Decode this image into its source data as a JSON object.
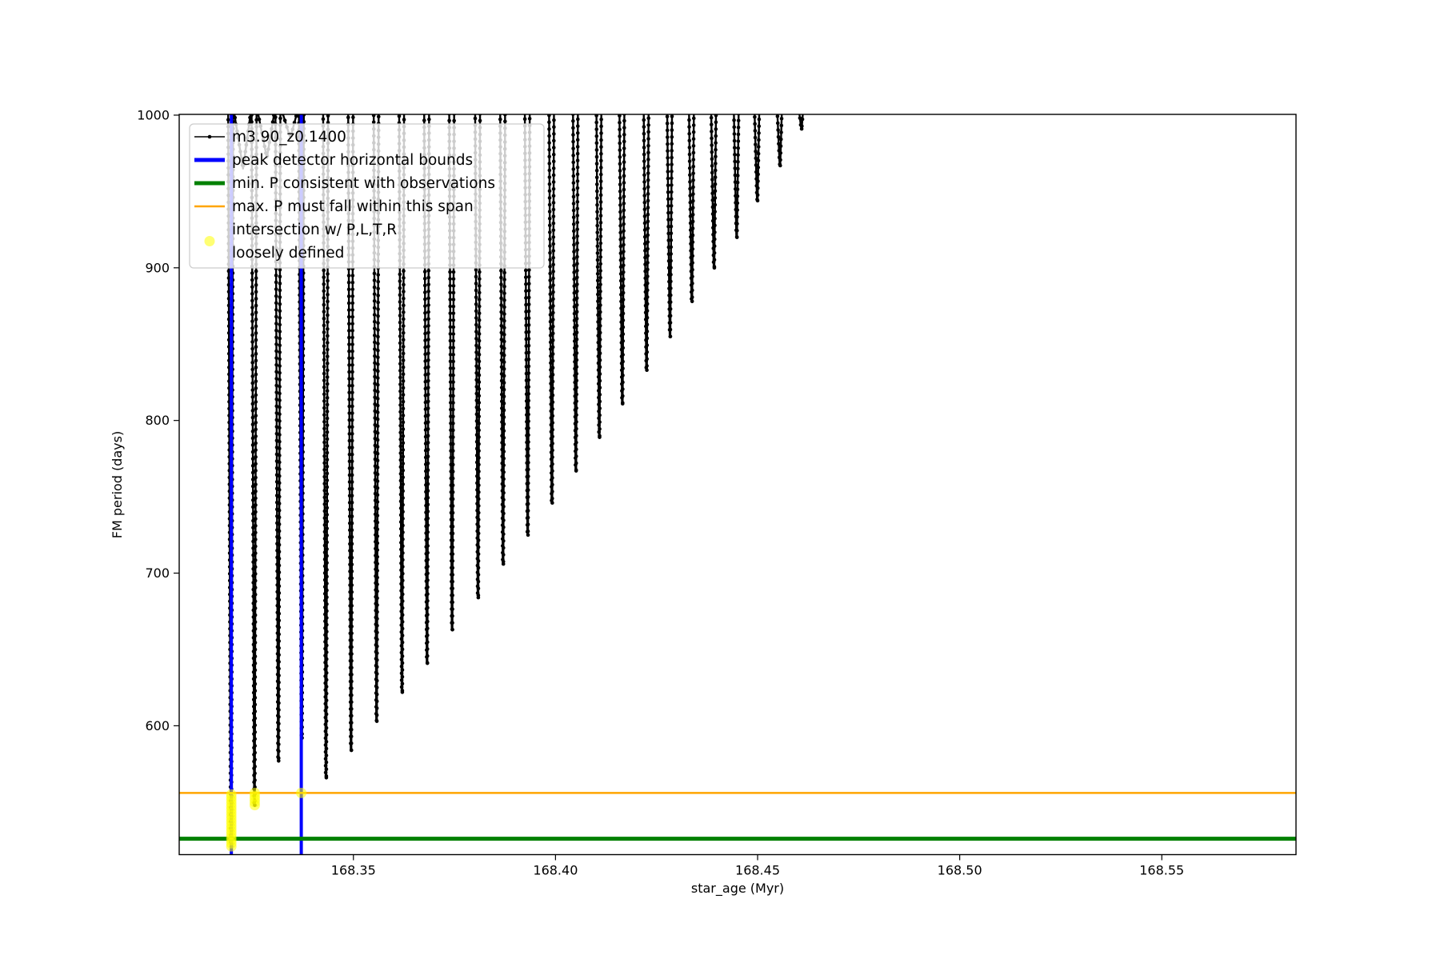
{
  "figure": {
    "background": "#ffffff"
  },
  "chart_data": {
    "type": "line",
    "title": "",
    "xlabel": "star_age (Myr)",
    "ylabel": "FM period (days)",
    "xlim": [
      168.3069,
      168.5832
    ],
    "ylim": [
      515.6,
      1000.5
    ],
    "grid": false,
    "xticks": [
      168.35,
      168.4,
      168.45,
      168.5,
      168.55
    ],
    "xtick_labels": [
      "168.35",
      "168.40",
      "168.45",
      "168.50",
      "168.55"
    ],
    "yticks": [
      600,
      700,
      800,
      900,
      1000
    ],
    "ytick_labels": [
      "600",
      "700",
      "800",
      "900",
      "1000"
    ],
    "series": [
      {
        "name": "m3.90_z0.1400",
        "kind": "spike-train",
        "color": "#000000",
        "description_visible": "narrow V-shaped dips descending from above the top of the y-range; minima listed as [star_age, min FM period]",
        "spikes": [
          [
            168.3198,
            521
          ],
          [
            168.3256,
            548
          ],
          [
            168.3315,
            577
          ],
          [
            168.3373,
            592
          ],
          [
            168.3433,
            566
          ],
          [
            168.3495,
            584
          ],
          [
            168.3558,
            603
          ],
          [
            168.3621,
            622
          ],
          [
            168.3683,
            641
          ],
          [
            168.3745,
            663
          ],
          [
            168.3809,
            684
          ],
          [
            168.3871,
            706
          ],
          [
            168.3932,
            725
          ],
          [
            168.3992,
            746
          ],
          [
            168.4051,
            767
          ],
          [
            168.4109,
            789
          ],
          [
            168.4166,
            811
          ],
          [
            168.4226,
            833
          ],
          [
            168.4284,
            855
          ],
          [
            168.4338,
            878
          ],
          [
            168.4393,
            900
          ],
          [
            168.4449,
            920
          ],
          [
            168.45,
            944
          ],
          [
            168.4556,
            967
          ],
          [
            168.4609,
            991
          ]
        ],
        "visible_peaks_between_spikes": [
          {
            "x": 168.3227,
            "y": 965
          },
          {
            "x": 168.3286,
            "y": 972
          },
          {
            "x": 168.3344,
            "y": 985
          }
        ],
        "offscale_peak_y": 1006
      },
      {
        "name": "peak detector horizontal bounds",
        "kind": "vlines",
        "color": "#0000ff",
        "x": [
          168.3198,
          168.3371
        ]
      },
      {
        "name": "min. P consistent with observations",
        "kind": "hline",
        "color": "#008000",
        "y": 526
      },
      {
        "name": "max. P must fall within this span",
        "kind": "hline",
        "color": "#ffa500",
        "y": 556
      },
      {
        "name": "intersection w/ P,L,T,R loosely defined",
        "kind": "scatter",
        "color": "#ffff00",
        "opacity": 0.55,
        "points": [
          [
            168.3198,
            521
          ],
          [
            168.3198,
            523
          ],
          [
            168.3198,
            525
          ],
          [
            168.3198,
            527
          ],
          [
            168.3198,
            529
          ],
          [
            168.3198,
            531
          ],
          [
            168.3198,
            533
          ],
          [
            168.3198,
            535
          ],
          [
            168.3198,
            537
          ],
          [
            168.3198,
            539
          ],
          [
            168.3198,
            541
          ],
          [
            168.3198,
            543
          ],
          [
            168.3198,
            545
          ],
          [
            168.3198,
            547
          ],
          [
            168.3198,
            549
          ],
          [
            168.3198,
            551
          ],
          [
            168.3198,
            553
          ],
          [
            168.3198,
            555
          ],
          [
            168.3256,
            548
          ],
          [
            168.3256,
            550
          ],
          [
            168.3256,
            552
          ],
          [
            168.3256,
            554
          ],
          [
            168.3256,
            556
          ],
          [
            168.3371,
            556
          ]
        ]
      }
    ],
    "legend": {
      "position": "upper left",
      "entries": [
        {
          "label": "m3.90_z0.1400",
          "handle": "line-dot",
          "color": "#000000"
        },
        {
          "label": "peak detector horizontal bounds",
          "handle": "thick-line",
          "color": "#0000ff"
        },
        {
          "label": "min. P consistent with observations",
          "handle": "thick-line",
          "color": "#008000"
        },
        {
          "label": "max. P must fall within this span",
          "handle": "thin-line",
          "color": "#ffa500"
        },
        {
          "label": "intersection w/ P,L,T,R\nloosely defined",
          "handle": "circle-marker",
          "color": "#ffff00"
        }
      ]
    }
  }
}
